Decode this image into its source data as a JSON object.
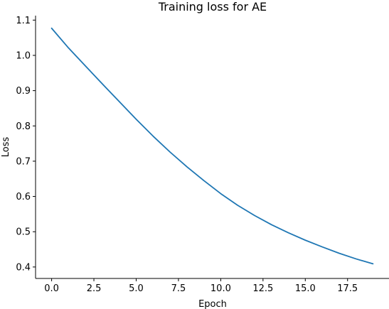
{
  "chart_data": {
    "type": "line",
    "title": "Training loss for AE",
    "xlabel": "Epoch",
    "ylabel": "Loss",
    "x": [
      0,
      1,
      2,
      3,
      4,
      5,
      6,
      7,
      8,
      9,
      10,
      11,
      12,
      13,
      14,
      15,
      16,
      17,
      18,
      19
    ],
    "series": [
      {
        "values": [
          1.077,
          1.021,
          0.97,
          0.919,
          0.869,
          0.819,
          0.771,
          0.726,
          0.684,
          0.645,
          0.608,
          0.575,
          0.546,
          0.52,
          0.497,
          0.476,
          0.457,
          0.439,
          0.423,
          0.409
        ],
        "color": "#1f77b4"
      }
    ],
    "xlim": [
      -0.95,
      19.95
    ],
    "ylim": [
      0.3675,
      1.1127
    ],
    "xticks": [
      0.0,
      2.5,
      5.0,
      7.5,
      10.0,
      12.5,
      15.0,
      17.5
    ],
    "xtick_labels": [
      "0.0",
      "2.5",
      "5.0",
      "7.5",
      "10.0",
      "12.5",
      "15.0",
      "17.5"
    ],
    "yticks": [
      0.4,
      0.5,
      0.6,
      0.7,
      0.8,
      0.9,
      1.0,
      1.1
    ],
    "ytick_labels": [
      "0.4",
      "0.5",
      "0.6",
      "0.7",
      "0.8",
      "0.9",
      "1.0",
      "1.1"
    ],
    "grid": false,
    "spines": "left-bottom"
  }
}
